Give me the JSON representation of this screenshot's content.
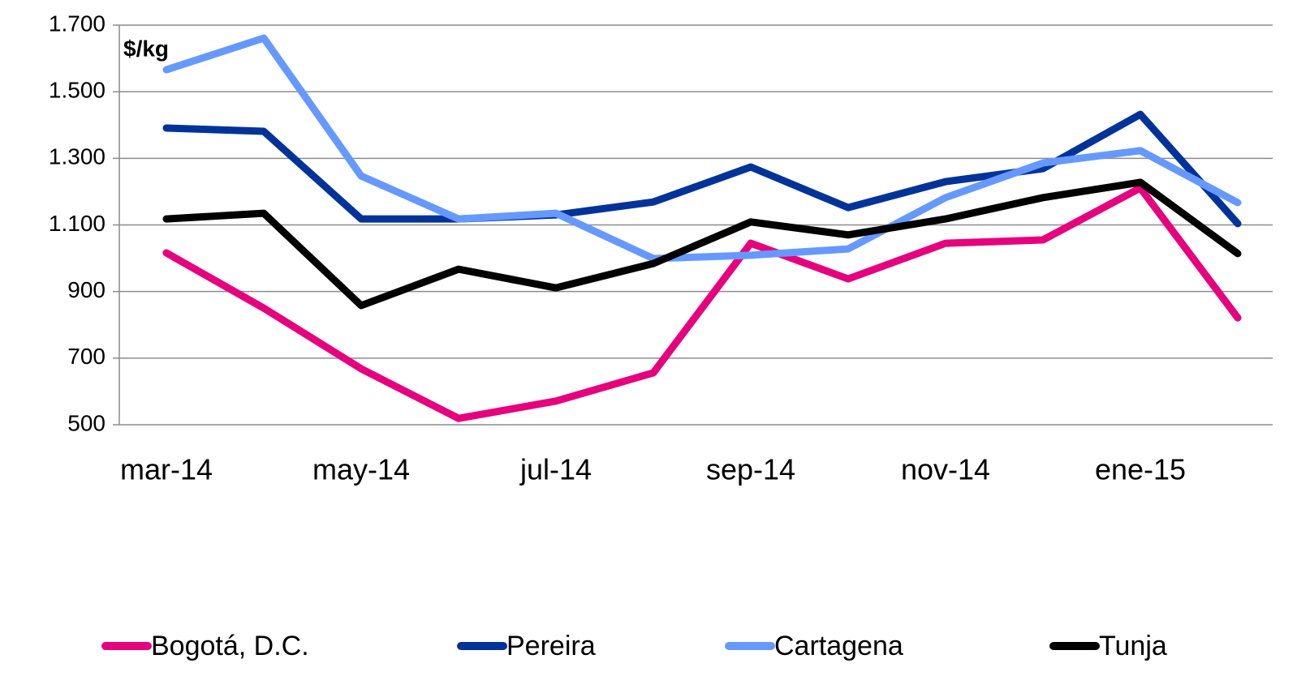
{
  "chart_data": {
    "type": "line",
    "annotation": "$/kg",
    "categories": [
      "mar-14",
      null,
      "may-14",
      null,
      "jul-14",
      null,
      "sep-14",
      null,
      "nov-14",
      null,
      "ene-15",
      null
    ],
    "series": [
      {
        "name": "Bogotá, D.C.",
        "color": "#e6007e",
        "values": [
          1016,
          850,
          668,
          519,
          571,
          656,
          1045,
          938,
          1045,
          1055,
          1211,
          821
        ]
      },
      {
        "name": "Pereira",
        "color": "#003399",
        "values": [
          1391,
          1381,
          1118,
          1118,
          1130,
          1169,
          1274,
          1152,
          1230,
          1269,
          1432,
          1104
        ]
      },
      {
        "name": "Cartagena",
        "color": "#6699ff",
        "values": [
          1566,
          1661,
          1247,
          1118,
          1135,
          999,
          1009,
          1028,
          1182,
          1286,
          1323,
          1167
        ]
      },
      {
        "name": "Tunja",
        "color": "#000000",
        "values": [
          1118,
          1135,
          858,
          967,
          911,
          984,
          1109,
          1070,
          1118,
          1182,
          1228,
          1014
        ]
      }
    ],
    "ylim": [
      500,
      1700
    ],
    "yticks": [
      500,
      700,
      900,
      {
        "value": 1100,
        "label": "1.100"
      },
      {
        "value": 1300,
        "label": "1.300"
      },
      {
        "value": 1500,
        "label": "1.500"
      },
      {
        "value": 1700,
        "label": "1.700"
      }
    ],
    "grid": true,
    "legend": "bottom"
  }
}
